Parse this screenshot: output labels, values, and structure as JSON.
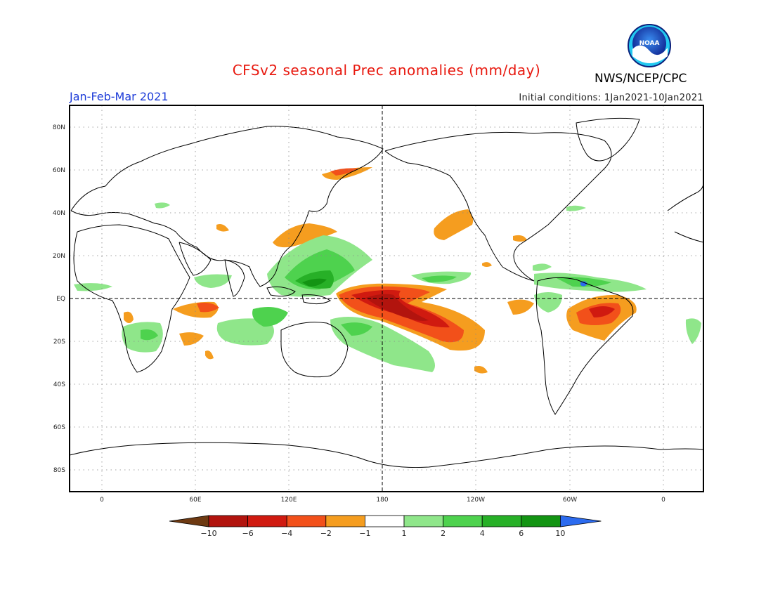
{
  "title": "CFSv2 seasonal Prec anomalies (mm/day)",
  "period": "Jan-Feb-Mar 2021",
  "organization": "NWS/NCEP/CPC",
  "logo_text": "NOAA",
  "initial_conditions": "Initial conditions: 1Jan2021-10Jan2021",
  "map": {
    "projection": "equirectangular",
    "lon_labels": [
      "0",
      "60E",
      "120E",
      "180",
      "120W",
      "60W",
      "0"
    ],
    "lat_labels": [
      "80N",
      "60N",
      "40N",
      "20N",
      "EQ",
      "20S",
      "40S",
      "60S",
      "80S"
    ],
    "grid": "dotted",
    "reference_lines": [
      "Equator",
      "180"
    ]
  },
  "colorbar": {
    "labels": [
      "-10",
      "-6",
      "-4",
      "-2",
      "-1",
      "1",
      "2",
      "4",
      "6",
      "10"
    ],
    "colors": [
      "#6e3a12",
      "#b2140e",
      "#d01a10",
      "#f2501a",
      "#f59d1f",
      "#ffffff",
      "#8fe68a",
      "#4ed24e",
      "#27b027",
      "#139413",
      "#2c6bef"
    ]
  }
}
